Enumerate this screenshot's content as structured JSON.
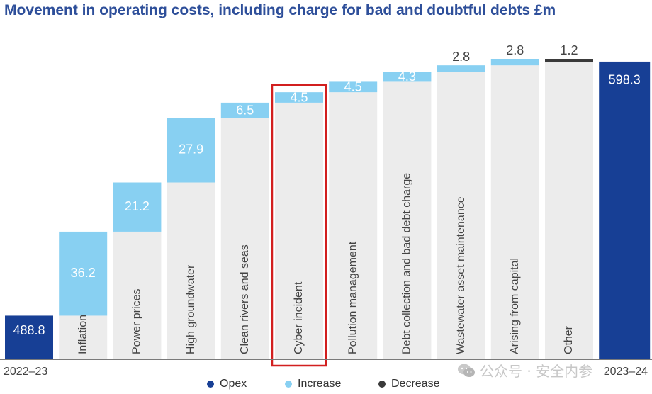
{
  "chart_data": {
    "type": "waterfall",
    "title": "Movement in operating costs, including charge for bad and doubtful debts £m",
    "start": {
      "label": "2022–23",
      "value": 488.8,
      "display": "488.8"
    },
    "end": {
      "label": "2023–24",
      "value": 598.3,
      "display": "598.3"
    },
    "steps": [
      {
        "category": "Inflation",
        "value": 36.2,
        "display": "36.2",
        "kind": "increase"
      },
      {
        "category": "Power prices",
        "value": 21.2,
        "display": "21.2",
        "kind": "increase"
      },
      {
        "category": "High groundwater",
        "value": 27.9,
        "display": "27.9",
        "kind": "increase"
      },
      {
        "category": "Clean rivers and seas",
        "value": 6.5,
        "display": "6.5",
        "kind": "increase"
      },
      {
        "category": "Cyber incident",
        "value": 4.5,
        "display": "4.5",
        "kind": "increase",
        "highlighted": true
      },
      {
        "category": "Pollution management",
        "value": 4.5,
        "display": "4.5",
        "kind": "increase"
      },
      {
        "category": "Debt collection and bad debt charge",
        "value": 4.3,
        "display": "4.3",
        "kind": "increase"
      },
      {
        "category": "Wastewater asset maintenance",
        "value": 2.8,
        "display": "2.8",
        "kind": "increase"
      },
      {
        "category": "Arising from capital",
        "value": 2.8,
        "display": "2.8",
        "kind": "increase"
      },
      {
        "category": "Other",
        "value": -1.2,
        "display": "1.2",
        "kind": "decrease"
      }
    ],
    "legend": [
      {
        "name": "Opex",
        "color": "#173f95"
      },
      {
        "name": "Increase",
        "color": "#88d0f2"
      },
      {
        "name": "Decrease",
        "color": "#3a3a3a"
      }
    ],
    "colors": {
      "opex": "#173f95",
      "increase": "#88d0f2",
      "decrease": "#3a3a3a",
      "base": "#ececec",
      "highlight": "#d21f1f",
      "title": "#2e4f9a"
    },
    "ylim": [
      470,
      605
    ]
  },
  "watermark": {
    "text": "公众号 · 安全内参"
  }
}
